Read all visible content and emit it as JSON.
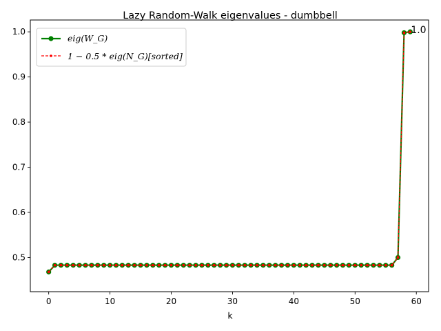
{
  "chart_data": {
    "type": "line",
    "title": "Lazy Random-Walk eigenvalues - dumbbell",
    "xlabel": "k",
    "ylabel": "",
    "xlim": [
      -3.0,
      62.0
    ],
    "ylim": [
      0.4243,
      1.0262
    ],
    "xticks": [
      0,
      10,
      20,
      30,
      40,
      50,
      60
    ],
    "xtick_labels": [
      "0",
      "10",
      "20",
      "30",
      "40",
      "50",
      "60"
    ],
    "yticks": [
      0.5,
      0.6,
      0.7,
      0.8,
      0.9,
      1.0
    ],
    "ytick_labels": [
      "0.5",
      "0.6",
      "0.7",
      "0.8",
      "0.9",
      "1.0"
    ],
    "grid": false,
    "legend_position": "top-left",
    "x": [
      0,
      1,
      2,
      3,
      4,
      5,
      6,
      7,
      8,
      9,
      10,
      11,
      12,
      13,
      14,
      15,
      16,
      17,
      18,
      19,
      20,
      21,
      22,
      23,
      24,
      25,
      26,
      27,
      28,
      29,
      30,
      31,
      32,
      33,
      34,
      35,
      36,
      37,
      38,
      39,
      40,
      41,
      42,
      43,
      44,
      45,
      46,
      47,
      48,
      49,
      50,
      51,
      52,
      53,
      54,
      55,
      56,
      57,
      58,
      59
    ],
    "series": [
      {
        "name": "$eig(W_G)$",
        "legend_label": "eig(W_G)",
        "color": "#008000",
        "style": "solid",
        "marker": "circle",
        "values": [
          0.468,
          0.483,
          0.483,
          0.483,
          0.483,
          0.483,
          0.483,
          0.483,
          0.483,
          0.483,
          0.483,
          0.483,
          0.483,
          0.483,
          0.483,
          0.483,
          0.483,
          0.483,
          0.483,
          0.483,
          0.483,
          0.483,
          0.483,
          0.483,
          0.483,
          0.483,
          0.483,
          0.483,
          0.483,
          0.483,
          0.483,
          0.483,
          0.483,
          0.483,
          0.483,
          0.483,
          0.483,
          0.483,
          0.483,
          0.483,
          0.483,
          0.483,
          0.483,
          0.483,
          0.483,
          0.483,
          0.483,
          0.483,
          0.483,
          0.483,
          0.483,
          0.483,
          0.483,
          0.483,
          0.483,
          0.483,
          0.483,
          0.5,
          0.998,
          1.0
        ]
      },
      {
        "name": "$1 - 0.5 * eig(N_G)[sorted]$",
        "legend_label": "1 − 0.5 * eig(N_G)[sorted]",
        "color": "#ff0000",
        "style": "dashed",
        "marker": "point",
        "values": [
          0.468,
          0.483,
          0.483,
          0.483,
          0.483,
          0.483,
          0.483,
          0.483,
          0.483,
          0.483,
          0.483,
          0.483,
          0.483,
          0.483,
          0.483,
          0.483,
          0.483,
          0.483,
          0.483,
          0.483,
          0.483,
          0.483,
          0.483,
          0.483,
          0.483,
          0.483,
          0.483,
          0.483,
          0.483,
          0.483,
          0.483,
          0.483,
          0.483,
          0.483,
          0.483,
          0.483,
          0.483,
          0.483,
          0.483,
          0.483,
          0.483,
          0.483,
          0.483,
          0.483,
          0.483,
          0.483,
          0.483,
          0.483,
          0.483,
          0.483,
          0.483,
          0.483,
          0.483,
          0.483,
          0.483,
          0.483,
          0.483,
          0.5,
          0.998,
          1.0
        ]
      }
    ],
    "annotations": [
      {
        "text": "1.0",
        "x": 59,
        "y": 1.0
      }
    ]
  }
}
